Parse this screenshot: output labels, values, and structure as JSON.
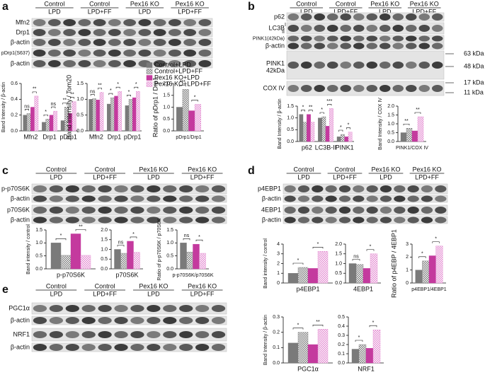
{
  "panels": [
    {
      "letter": "a",
      "columns": [
        [
          "Control",
          "LPD"
        ],
        [
          "Control",
          "LPD+FF"
        ],
        [
          "Pex16 KO",
          "LPD"
        ],
        [
          "Pex16 KO",
          "LPD+FF"
        ]
      ],
      "blots": [
        "Mfn2",
        "Drp1",
        "β-actin",
        "pDrp1(S637)",
        "β-actin"
      ]
    },
    {
      "letter": "b",
      "columns": [
        [
          "Control",
          "LPD"
        ],
        [
          "Control",
          "LPD+FF"
        ],
        [
          "Pex16 KO",
          "LPD"
        ],
        [
          "Pex16 KO",
          "LPD+FF"
        ]
      ],
      "blots": [
        "p62",
        "LC3B",
        "PINK1(42kDa)",
        "β-actin",
        "PINK1",
        "COX IV"
      ],
      "lc3b_forms": [
        "I",
        "II"
      ],
      "pink1_size": "42kDa",
      "sizes": [
        "63 kDa",
        "48 kDa",
        "17 kDa",
        "11 kDa"
      ]
    },
    {
      "letter": "c",
      "columns": [
        [
          "Control",
          "LPD"
        ],
        [
          "Control",
          "LPD+FF"
        ],
        [
          "Pex16 KO",
          "LPD"
        ],
        [
          "Pex16 KO",
          "LPD+FF"
        ]
      ],
      "blots": [
        "p-p70S6K",
        "β-actin",
        "p70S6K",
        "β-actin"
      ]
    },
    {
      "letter": "d",
      "columns": [
        [
          "Control",
          "LPD"
        ],
        [
          "Control",
          "LPD+FF"
        ],
        [
          "Pex16 KO",
          "LPD"
        ],
        [
          "Pex16 KO",
          "LPD+FF"
        ]
      ],
      "blots": [
        "p4EBP1",
        "β-actin",
        "4EBP1",
        "β-actin"
      ]
    },
    {
      "letter": "e",
      "columns": [
        [
          "Control",
          "LPD"
        ],
        [
          "Control",
          "LPD+FF"
        ],
        [
          "Pex16 KO",
          "LPD"
        ],
        [
          "Pex16 KO",
          "LPD+FF"
        ]
      ],
      "blots": [
        "PGC1α",
        "β-actin",
        "NRF1",
        "β-actin"
      ]
    }
  ],
  "legend": [
    {
      "name": "Control+LPD",
      "color": "#7a7a7a",
      "hatched": false
    },
    {
      "name": "Control+LPD+FF",
      "color": "#7a7a7a",
      "hatched": true
    },
    {
      "name": "Pex16 KO+LPD",
      "color": "#c43a9e",
      "hatched": false
    },
    {
      "name": "Pex16 KO+LPD+FF",
      "color": "#e38ad0",
      "hatched": true
    }
  ],
  "charts": [
    {
      "type": "bar",
      "y_label": "Band Intensity / β-actin",
      "categories": [
        "Mfn2",
        "Drp1",
        "pDrp1"
      ],
      "values": [
        [
          0.2,
          0.22,
          0.3,
          0.44
        ],
        [
          0.11,
          0.15,
          0.2,
          0.25
        ],
        [
          0.13,
          0.3,
          0.22,
          0.37
        ]
      ],
      "significance": [
        [
          "ns",
          "**"
        ],
        [
          "*",
          "ns"
        ],
        [
          "**",
          "**"
        ]
      ],
      "ylim": [
        0,
        0.6
      ],
      "yticks": [
        {
          "value": 0,
          "label": "0.0"
        },
        0.2,
        0.4,
        0.6
      ]
    },
    {
      "type": "bar",
      "y_label": "Band Intensity / Tom20",
      "categories": [
        "Mfn2",
        "Drp1",
        "pDrp1"
      ],
      "values": [
        [
          1.0,
          1.02,
          0.98,
          1.22
        ],
        [
          0.85,
          1.05,
          1.1,
          1.25
        ],
        [
          0.8,
          1.0,
          1.05,
          1.25
        ]
      ],
      "significance": [
        [
          "ns",
          "**"
        ],
        [
          "*",
          "*"
        ],
        [
          "*",
          "*"
        ]
      ],
      "ylim": [
        0,
        1.5
      ],
      "yticks": [
        {
          "value": 0,
          "label": "0.0"
        },
        0.5,
        {
          "value": 1,
          "label": "1.0"
        },
        1.5
      ]
    },
    {
      "type": "bar",
      "y_label": "Ratio of pDrp1 / Drp1",
      "categories": [
        "pDrp1/Drp1"
      ],
      "values": [
        [
          1.0,
          1.75,
          0.85,
          1.12
        ]
      ],
      "significance": [
        [
          "***",
          "*"
        ]
      ],
      "ylim": [
        0,
        2
      ],
      "yticks": [
        {
          "value": 0,
          "label": "0.0"
        },
        0.5,
        {
          "value": 1,
          "label": "1.0"
        },
        1.5,
        {
          "value": 2,
          "label": "2.0"
        }
      ]
    },
    {
      "type": "bar",
      "y_label": "Band Intensity / β-actin",
      "categories": [
        "p62",
        "LC3B-II",
        "PINK1"
      ],
      "values": [
        [
          1.15,
          0.82,
          1.15,
          0.82
        ],
        [
          1.0,
          1.05,
          0.65,
          1.4
        ],
        [
          0.2,
          0.3,
          0.2,
          0.4
        ]
      ],
      "significance": [
        [
          "*",
          "**"
        ],
        [
          "*",
          "***"
        ],
        [
          "*",
          "*"
        ]
      ],
      "ylim": [
        0,
        1.5
      ],
      "yticks": [
        {
          "value": 0,
          "label": "0.0"
        },
        0.5,
        {
          "value": 1,
          "label": "1.0"
        },
        1.5
      ]
    },
    {
      "type": "bar",
      "y_label": "Band Intensity / COX IV",
      "categories": [
        "PINK1/COX IV"
      ],
      "values": [
        [
          0.5,
          0.75,
          0.6,
          1.4
        ]
      ],
      "significance": [
        [
          "**",
          "**"
        ]
      ],
      "ylim": [
        0,
        2
      ],
      "yticks": [
        {
          "value": 0,
          "label": "0.0"
        },
        0.5,
        {
          "value": 1,
          "label": "1.0"
        },
        1.5,
        {
          "value": 2,
          "label": "2.0"
        }
      ]
    },
    {
      "type": "bar",
      "y_label": "Band intensity / control",
      "categories": [
        "p-p70S6K"
      ],
      "values": [
        [
          1.0,
          0.52,
          1.35,
          0.52
        ]
      ],
      "significance": [
        [
          "*",
          "**"
        ]
      ],
      "ylim": [
        0,
        1.5
      ],
      "yticks": [
        {
          "value": 0,
          "label": "0.0"
        },
        0.5,
        {
          "value": 1,
          "label": "1.0"
        },
        1.5
      ]
    },
    {
      "type": "bar",
      "categories": [
        "p70S6K"
      ],
      "values": [
        [
          1.0,
          0.8,
          1.42,
          0.85
        ]
      ],
      "significance": [
        [
          "ns",
          "*"
        ]
      ],
      "ylim": [
        0,
        2
      ],
      "yticks": [
        {
          "value": 0,
          "label": "0.0"
        },
        0.5,
        {
          "value": 1,
          "label": "1.0"
        },
        1.5,
        {
          "value": 2,
          "label": "2.0"
        }
      ]
    },
    {
      "type": "bar",
      "y_label": "Ratio of p-p70S6K / p70S6K",
      "categories": [
        "p-p70S6K/p70S6K"
      ],
      "values": [
        [
          1.0,
          0.65,
          0.95,
          0.6
        ]
      ],
      "significance": [
        [
          "ns",
          "*"
        ]
      ],
      "ylim": [
        0,
        1.5
      ],
      "yticks": [
        {
          "value": 0,
          "label": "0.0"
        },
        0.5,
        {
          "value": 1,
          "label": "1.0"
        },
        1.5
      ]
    },
    {
      "type": "bar",
      "y_label": "Band intensity / control",
      "categories": [
        "p4EBP1"
      ],
      "values": [
        [
          1.0,
          1.6,
          1.5,
          3.25
        ]
      ],
      "significance": [
        [
          "*",
          "*"
        ]
      ],
      "ylim": [
        0,
        4
      ],
      "yticks": [
        0,
        1,
        2,
        3,
        4
      ]
    },
    {
      "type": "bar",
      "categories": [
        "4EBP1"
      ],
      "values": [
        [
          1.0,
          0.95,
          0.75,
          1.5
        ]
      ],
      "significance": [
        [
          "ns",
          "*"
        ]
      ],
      "ylim": [
        0,
        2
      ],
      "yticks": [
        {
          "value": 0,
          "label": "0.0"
        },
        0.5,
        {
          "value": 1,
          "label": "1.0"
        },
        1.5,
        {
          "value": 2,
          "label": "2.0"
        }
      ]
    },
    {
      "type": "bar",
      "y_label": "Ratio of p4EBP / 4EBP1",
      "categories": [
        "p4EBP1/4EBP1"
      ],
      "values": [
        [
          1.0,
          1.7,
          2.1,
          2.85
        ]
      ],
      "significance": [
        [
          "*",
          "*"
        ]
      ],
      "ylim": [
        0,
        3
      ],
      "yticks": [
        0,
        1,
        2,
        3
      ]
    },
    {
      "type": "bar",
      "y_label": "Band Intensity / β-actin",
      "categories": [
        "PGC1α"
      ],
      "values": [
        [
          0.13,
          0.2,
          0.12,
          0.22
        ]
      ],
      "significance": [
        [
          "*",
          "**"
        ]
      ],
      "ylim": [
        0,
        0.3
      ],
      "yticks": [
        {
          "value": 0,
          "label": "0.0"
        },
        0.1,
        0.2,
        0.3
      ]
    },
    {
      "type": "bar",
      "categories": [
        "NRF1"
      ],
      "values": [
        [
          0.15,
          0.2,
          0.16,
          0.36
        ]
      ],
      "significance": [
        [
          "*",
          "*"
        ]
      ],
      "ylim": [
        0,
        0.5
      ],
      "yticks": [
        {
          "value": 0,
          "label": "0.0"
        },
        0.1,
        0.2,
        0.3,
        0.4,
        0.5
      ]
    }
  ]
}
